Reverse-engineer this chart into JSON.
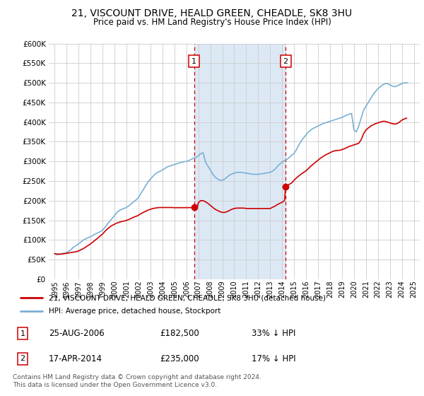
{
  "title": "21, VISCOUNT DRIVE, HEALD GREEN, CHEADLE, SK8 3HU",
  "subtitle": "Price paid vs. HM Land Registry's House Price Index (HPI)",
  "legend_line1": "21, VISCOUNT DRIVE, HEALD GREEN, CHEADLE, SK8 3HU (detached house)",
  "legend_line2": "HPI: Average price, detached house, Stockport",
  "footnote": "Contains HM Land Registry data © Crown copyright and database right 2024.\nThis data is licensed under the Open Government Licence v3.0.",
  "purchase1": {
    "label": "1",
    "date": "25-AUG-2006",
    "price": 182500,
    "pct": "33% ↓ HPI"
  },
  "purchase2": {
    "label": "2",
    "date": "17-APR-2014",
    "price": 235000,
    "pct": "17% ↓ HPI"
  },
  "hpi_color": "#7ab0d4",
  "price_color": "#cc0000",
  "vline_color": "#cc0000",
  "highlight_color": "#dce9f5",
  "ylim": [
    0,
    600000
  ],
  "yticks": [
    0,
    50000,
    100000,
    150000,
    200000,
    250000,
    300000,
    350000,
    400000,
    450000,
    500000,
    550000,
    600000
  ],
  "background_color": "#ffffff",
  "grid_color": "#cccccc",
  "purchase1_x_year": 2006.65,
  "purchase2_x_year": 2014.29,
  "hpi_years": [
    1995.0,
    1995.1,
    1995.2,
    1995.3,
    1995.4,
    1995.5,
    1995.6,
    1995.7,
    1995.8,
    1995.9,
    1996.0,
    1996.1,
    1996.2,
    1996.3,
    1996.4,
    1996.5,
    1996.6,
    1996.7,
    1996.8,
    1996.9,
    1997.0,
    1997.2,
    1997.4,
    1997.6,
    1997.8,
    1998.0,
    1998.2,
    1998.4,
    1998.6,
    1998.8,
    1999.0,
    1999.2,
    1999.4,
    1999.6,
    1999.8,
    2000.0,
    2000.2,
    2000.4,
    2000.6,
    2000.8,
    2001.0,
    2001.2,
    2001.4,
    2001.6,
    2001.8,
    2002.0,
    2002.2,
    2002.4,
    2002.6,
    2002.8,
    2003.0,
    2003.2,
    2003.4,
    2003.6,
    2003.8,
    2004.0,
    2004.2,
    2004.4,
    2004.6,
    2004.8,
    2005.0,
    2005.2,
    2005.4,
    2005.6,
    2005.8,
    2006.0,
    2006.2,
    2006.4,
    2006.6,
    2006.8,
    2007.0,
    2007.2,
    2007.4,
    2007.6,
    2007.8,
    2008.0,
    2008.2,
    2008.4,
    2008.6,
    2008.8,
    2009.0,
    2009.2,
    2009.4,
    2009.6,
    2009.8,
    2010.0,
    2010.2,
    2010.4,
    2010.6,
    2010.8,
    2011.0,
    2011.2,
    2011.4,
    2011.6,
    2011.8,
    2012.0,
    2012.2,
    2012.4,
    2012.6,
    2012.8,
    2013.0,
    2013.2,
    2013.4,
    2013.6,
    2013.8,
    2014.0,
    2014.2,
    2014.4,
    2014.6,
    2014.8,
    2015.0,
    2015.2,
    2015.4,
    2015.6,
    2015.8,
    2016.0,
    2016.2,
    2016.4,
    2016.6,
    2016.8,
    2017.0,
    2017.2,
    2017.4,
    2017.6,
    2017.8,
    2018.0,
    2018.2,
    2018.4,
    2018.6,
    2018.8,
    2019.0,
    2019.2,
    2019.4,
    2019.6,
    2019.8,
    2020.0,
    2020.2,
    2020.4,
    2020.6,
    2020.8,
    2021.0,
    2021.2,
    2021.4,
    2021.6,
    2021.8,
    2022.0,
    2022.2,
    2022.4,
    2022.6,
    2022.8,
    2023.0,
    2023.2,
    2023.4,
    2023.6,
    2023.8,
    2024.0,
    2024.2,
    2024.4,
    2024.5
  ],
  "hpi_values": [
    65000,
    63000,
    62000,
    63000,
    64000,
    65000,
    65000,
    66000,
    66000,
    67000,
    68000,
    70000,
    72000,
    74000,
    76000,
    80000,
    82000,
    84000,
    86000,
    88000,
    90000,
    95000,
    100000,
    103000,
    106000,
    108000,
    112000,
    115000,
    118000,
    121000,
    125000,
    132000,
    140000,
    148000,
    155000,
    162000,
    170000,
    175000,
    178000,
    180000,
    183000,
    187000,
    192000,
    197000,
    202000,
    208000,
    218000,
    228000,
    238000,
    248000,
    255000,
    262000,
    268000,
    272000,
    275000,
    278000,
    282000,
    286000,
    288000,
    290000,
    292000,
    294000,
    296000,
    298000,
    299000,
    300000,
    302000,
    305000,
    308000,
    310000,
    314000,
    320000,
    322000,
    298000,
    288000,
    278000,
    268000,
    260000,
    255000,
    252000,
    252000,
    255000,
    260000,
    265000,
    268000,
    270000,
    272000,
    272000,
    272000,
    271000,
    270000,
    269000,
    268000,
    267000,
    267000,
    267000,
    268000,
    269000,
    270000,
    271000,
    272000,
    275000,
    280000,
    287000,
    293000,
    298000,
    302000,
    305000,
    310000,
    316000,
    320000,
    330000,
    342000,
    352000,
    360000,
    368000,
    375000,
    380000,
    384000,
    387000,
    390000,
    393000,
    396000,
    398000,
    400000,
    402000,
    404000,
    406000,
    408000,
    410000,
    412000,
    415000,
    418000,
    420000,
    422000,
    380000,
    375000,
    390000,
    410000,
    430000,
    440000,
    450000,
    460000,
    470000,
    478000,
    485000,
    490000,
    495000,
    498000,
    498000,
    495000,
    492000,
    490000,
    492000,
    495000,
    498000,
    500000,
    500000,
    500000
  ],
  "price_years": [
    1995.0,
    1995.2,
    1995.4,
    1995.6,
    1995.8,
    1996.0,
    1996.2,
    1996.4,
    1996.6,
    1996.8,
    1997.0,
    1997.2,
    1997.4,
    1997.6,
    1997.8,
    1998.0,
    1998.2,
    1998.4,
    1998.6,
    1998.8,
    1999.0,
    1999.2,
    1999.4,
    1999.6,
    1999.8,
    2000.0,
    2000.2,
    2000.4,
    2000.6,
    2000.8,
    2001.0,
    2001.2,
    2001.4,
    2001.6,
    2001.8,
    2002.0,
    2002.2,
    2002.4,
    2002.6,
    2002.8,
    2003.0,
    2003.2,
    2003.4,
    2003.6,
    2003.8,
    2004.0,
    2004.2,
    2004.4,
    2004.6,
    2004.8,
    2005.0,
    2005.2,
    2005.4,
    2005.6,
    2005.8,
    2006.0,
    2006.2,
    2006.4,
    2006.65,
    2006.9,
    2007.0,
    2007.2,
    2007.4,
    2007.6,
    2007.8,
    2008.0,
    2008.2,
    2008.4,
    2008.6,
    2008.8,
    2009.0,
    2009.2,
    2009.4,
    2009.6,
    2009.8,
    2010.0,
    2010.2,
    2010.4,
    2010.6,
    2010.8,
    2011.0,
    2011.2,
    2011.4,
    2011.6,
    2011.8,
    2012.0,
    2012.2,
    2012.4,
    2012.6,
    2012.8,
    2013.0,
    2013.2,
    2013.4,
    2013.6,
    2013.8,
    2014.0,
    2014.2,
    2014.29,
    2014.5,
    2014.8,
    2015.0,
    2015.2,
    2015.4,
    2015.6,
    2015.8,
    2016.0,
    2016.2,
    2016.4,
    2016.6,
    2016.8,
    2017.0,
    2017.2,
    2017.4,
    2017.6,
    2017.8,
    2018.0,
    2018.2,
    2018.4,
    2018.6,
    2018.8,
    2019.0,
    2019.2,
    2019.4,
    2019.6,
    2019.8,
    2020.0,
    2020.2,
    2020.4,
    2020.6,
    2020.8,
    2021.0,
    2021.2,
    2021.4,
    2021.6,
    2021.8,
    2022.0,
    2022.2,
    2022.4,
    2022.6,
    2022.8,
    2023.0,
    2023.2,
    2023.4,
    2023.6,
    2023.8,
    2024.0,
    2024.2,
    2024.4
  ],
  "price_values": [
    65000,
    64000,
    63500,
    64000,
    65000,
    66000,
    67000,
    68000,
    69000,
    70000,
    72000,
    75000,
    78000,
    82000,
    86000,
    90000,
    95000,
    100000,
    105000,
    110000,
    115000,
    122000,
    128000,
    133000,
    137000,
    140000,
    143000,
    145000,
    147000,
    148000,
    150000,
    152000,
    155000,
    158000,
    160000,
    163000,
    167000,
    170000,
    173000,
    176000,
    178000,
    180000,
    181000,
    182000,
    182500,
    182500,
    182500,
    182500,
    182500,
    182500,
    182000,
    182000,
    182000,
    182000,
    182000,
    182000,
    182200,
    182400,
    182500,
    182500,
    195000,
    200000,
    200000,
    197000,
    193000,
    188000,
    183000,
    178000,
    175000,
    172000,
    170000,
    170000,
    172000,
    175000,
    178000,
    180000,
    181000,
    181000,
    181000,
    181000,
    180000,
    180000,
    180000,
    180000,
    180000,
    180000,
    180000,
    180000,
    180000,
    180000,
    180000,
    183000,
    186000,
    190000,
    193000,
    196000,
    200000,
    235000,
    240000,
    245000,
    252000,
    258000,
    263000,
    268000,
    272000,
    276000,
    282000,
    288000,
    293000,
    298000,
    303000,
    308000,
    312000,
    316000,
    319000,
    322000,
    325000,
    327000,
    328000,
    328000,
    330000,
    332000,
    335000,
    338000,
    340000,
    342000,
    344000,
    346000,
    355000,
    370000,
    380000,
    385000,
    390000,
    393000,
    396000,
    398000,
    400000,
    402000,
    402000,
    400000,
    398000,
    396000,
    395000,
    396000,
    400000,
    405000,
    408000,
    410000
  ],
  "xtick_years": [
    1995,
    1996,
    1997,
    1998,
    1999,
    2000,
    2001,
    2002,
    2003,
    2004,
    2005,
    2006,
    2007,
    2008,
    2009,
    2010,
    2011,
    2012,
    2013,
    2014,
    2015,
    2016,
    2017,
    2018,
    2019,
    2020,
    2021,
    2022,
    2023,
    2024,
    2025
  ]
}
